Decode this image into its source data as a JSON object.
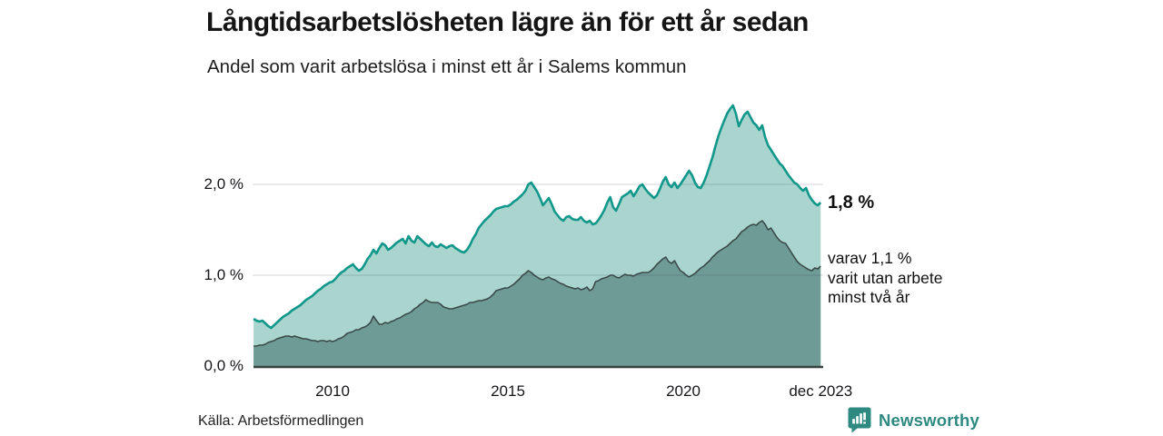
{
  "header": {
    "title": "Långtidsarbetslösheten lägre än för ett år sedan",
    "subtitle": "Andel som varit arbetslösa i minst ett år i Salems kommun"
  },
  "chart_data": {
    "type": "area",
    "title": "Långtidsarbetslösheten lägre än för ett år sedan",
    "subtitle": "Andel som varit arbetslösa i minst ett år i Salems kommun",
    "x_start_year": 2007.75,
    "x_step": "1 month",
    "x_end_label": "dec 2023",
    "ylim": [
      0,
      3.05
    ],
    "grid": "horizontal",
    "legend": "none",
    "y_ticks": [
      {
        "label": "2,0 %",
        "value": 2.0
      },
      {
        "label": "1,0 %",
        "value": 1.0
      },
      {
        "label": "0,0 %",
        "value": 0.0
      }
    ],
    "x_ticks": [
      {
        "label": "2010",
        "year": 2010
      },
      {
        "label": "2015",
        "year": 2015
      },
      {
        "label": "2020",
        "year": 2020
      },
      {
        "label": "dec 2023",
        "year": 2023.92
      }
    ],
    "series": [
      {
        "name": "arbetslösa minst ett år",
        "line_color": "#12988b",
        "fill_color": "#a9d5ce",
        "end_value_pct": 1.8,
        "values": [
          0.52,
          0.5,
          0.49,
          0.5,
          0.47,
          0.44,
          0.42,
          0.45,
          0.48,
          0.51,
          0.54,
          0.56,
          0.58,
          0.61,
          0.63,
          0.65,
          0.67,
          0.7,
          0.73,
          0.75,
          0.77,
          0.8,
          0.83,
          0.85,
          0.88,
          0.9,
          0.92,
          0.93,
          0.96,
          1.0,
          1.03,
          1.05,
          1.08,
          1.1,
          1.12,
          1.08,
          1.05,
          1.07,
          1.12,
          1.18,
          1.22,
          1.28,
          1.24,
          1.3,
          1.35,
          1.33,
          1.28,
          1.3,
          1.33,
          1.36,
          1.38,
          1.4,
          1.35,
          1.43,
          1.38,
          1.36,
          1.43,
          1.4,
          1.37,
          1.34,
          1.32,
          1.36,
          1.32,
          1.31,
          1.34,
          1.32,
          1.3,
          1.32,
          1.33,
          1.3,
          1.28,
          1.26,
          1.25,
          1.28,
          1.33,
          1.4,
          1.45,
          1.52,
          1.56,
          1.6,
          1.63,
          1.66,
          1.7,
          1.73,
          1.74,
          1.75,
          1.76,
          1.76,
          1.78,
          1.81,
          1.83,
          1.86,
          1.89,
          1.93,
          2.0,
          2.02,
          1.97,
          1.92,
          1.85,
          1.77,
          1.81,
          1.85,
          1.78,
          1.7,
          1.66,
          1.62,
          1.6,
          1.64,
          1.65,
          1.62,
          1.61,
          1.61,
          1.64,
          1.6,
          1.58,
          1.6,
          1.56,
          1.57,
          1.61,
          1.66,
          1.72,
          1.8,
          1.86,
          1.75,
          1.71,
          1.78,
          1.86,
          1.88,
          1.9,
          1.93,
          1.87,
          1.92,
          1.98,
          2.0,
          1.95,
          1.91,
          1.88,
          1.85,
          1.88,
          1.95,
          2.03,
          2.08,
          2.0,
          1.97,
          2.02,
          1.96,
          2.0,
          2.05,
          2.1,
          2.15,
          2.1,
          2.02,
          1.97,
          1.96,
          2.02,
          2.1,
          2.2,
          2.3,
          2.42,
          2.53,
          2.62,
          2.7,
          2.78,
          2.83,
          2.87,
          2.78,
          2.64,
          2.71,
          2.77,
          2.8,
          2.74,
          2.68,
          2.65,
          2.6,
          2.65,
          2.52,
          2.43,
          2.38,
          2.33,
          2.28,
          2.23,
          2.2,
          2.15,
          2.1,
          2.06,
          2.02,
          2.0,
          1.96,
          1.93,
          1.96,
          1.88,
          1.83,
          1.79,
          1.77,
          1.8
        ]
      },
      {
        "name": "utan arbete minst två år",
        "line_color": "#3b4a48",
        "fill_color": "#6f9b97",
        "end_value_pct": 1.1,
        "values": [
          0.22,
          0.22,
          0.23,
          0.23,
          0.24,
          0.26,
          0.27,
          0.28,
          0.3,
          0.31,
          0.32,
          0.33,
          0.33,
          0.32,
          0.33,
          0.32,
          0.31,
          0.3,
          0.3,
          0.29,
          0.28,
          0.28,
          0.27,
          0.28,
          0.28,
          0.27,
          0.28,
          0.27,
          0.28,
          0.3,
          0.31,
          0.33,
          0.36,
          0.37,
          0.38,
          0.4,
          0.4,
          0.42,
          0.43,
          0.45,
          0.48,
          0.55,
          0.5,
          0.46,
          0.46,
          0.48,
          0.47,
          0.49,
          0.5,
          0.52,
          0.53,
          0.55,
          0.57,
          0.58,
          0.6,
          0.63,
          0.65,
          0.68,
          0.7,
          0.73,
          0.71,
          0.7,
          0.7,
          0.7,
          0.68,
          0.65,
          0.64,
          0.63,
          0.63,
          0.64,
          0.65,
          0.66,
          0.67,
          0.68,
          0.7,
          0.7,
          0.71,
          0.72,
          0.72,
          0.73,
          0.74,
          0.76,
          0.79,
          0.83,
          0.84,
          0.85,
          0.86,
          0.86,
          0.88,
          0.9,
          0.93,
          0.96,
          1.0,
          1.02,
          1.05,
          1.03,
          1.0,
          0.98,
          0.96,
          0.95,
          0.97,
          0.98,
          0.96,
          0.95,
          0.93,
          0.91,
          0.9,
          0.88,
          0.87,
          0.86,
          0.85,
          0.86,
          0.84,
          0.85,
          0.87,
          0.83,
          0.85,
          0.93,
          0.94,
          0.96,
          0.97,
          0.98,
          1.0,
          1.0,
          0.98,
          0.97,
          0.99,
          1.01,
          1.0,
          1.0,
          0.99,
          1.01,
          1.02,
          1.03,
          1.03,
          1.03,
          1.05,
          1.08,
          1.12,
          1.15,
          1.18,
          1.2,
          1.15,
          1.13,
          1.16,
          1.1,
          1.05,
          1.03,
          1.0,
          0.98,
          1.0,
          1.02,
          1.05,
          1.08,
          1.1,
          1.13,
          1.16,
          1.2,
          1.23,
          1.26,
          1.28,
          1.3,
          1.32,
          1.35,
          1.38,
          1.4,
          1.44,
          1.48,
          1.5,
          1.53,
          1.55,
          1.56,
          1.55,
          1.58,
          1.6,
          1.56,
          1.5,
          1.52,
          1.47,
          1.42,
          1.38,
          1.36,
          1.35,
          1.3,
          1.25,
          1.2,
          1.15,
          1.12,
          1.1,
          1.08,
          1.06,
          1.05,
          1.08,
          1.07,
          1.1
        ]
      }
    ],
    "annotations": {
      "total_end_label": "1,8 %",
      "inner_end_label": "varav 1,1 %\nvarit utan arbete\nminst två år"
    }
  },
  "footer": {
    "source": "Källa: Arbetsförmedlingen",
    "brand": "Newsworthy"
  },
  "colors": {
    "outer_line": "#12988b",
    "outer_fill": "#a9d5ce",
    "inner_line": "#3b4a48",
    "inner_fill": "#6f9b97",
    "gridline": "#2f3b50",
    "axis_line": "#37413f",
    "brand_teal": "#2e8a80",
    "text": "#111111"
  }
}
